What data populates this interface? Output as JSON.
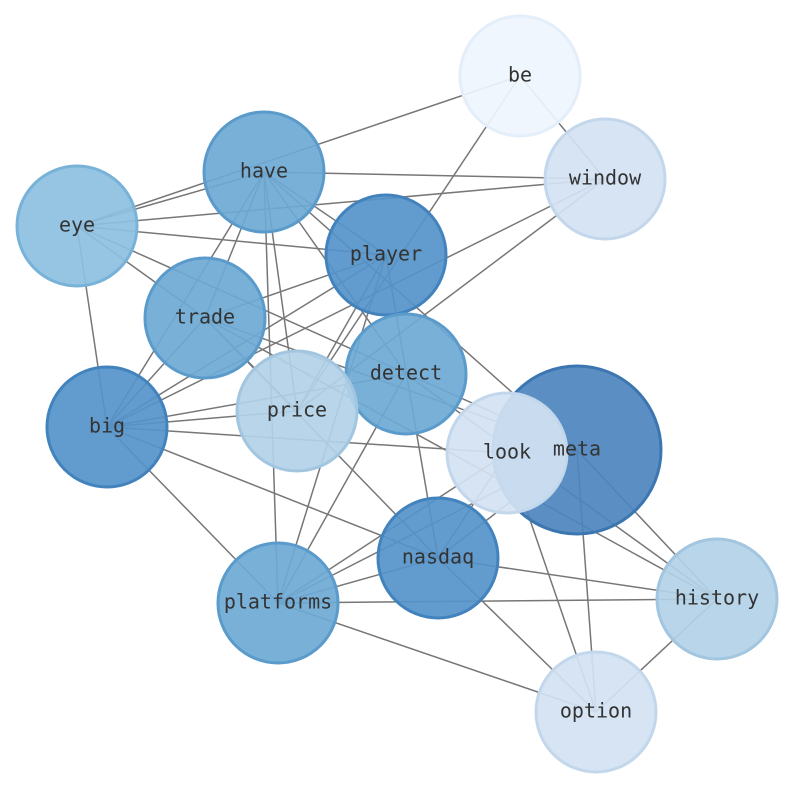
{
  "nodes": [
    {
      "label": "be"
    },
    {
      "label": "window"
    },
    {
      "label": "have"
    },
    {
      "label": "eye"
    },
    {
      "label": "player"
    },
    {
      "label": "trade"
    },
    {
      "label": "detect"
    },
    {
      "label": "price"
    },
    {
      "label": "big"
    },
    {
      "label": "meta"
    },
    {
      "label": "look"
    },
    {
      "label": "nasdaq"
    },
    {
      "label": "platforms"
    },
    {
      "label": "history"
    },
    {
      "label": "option"
    }
  ]
}
